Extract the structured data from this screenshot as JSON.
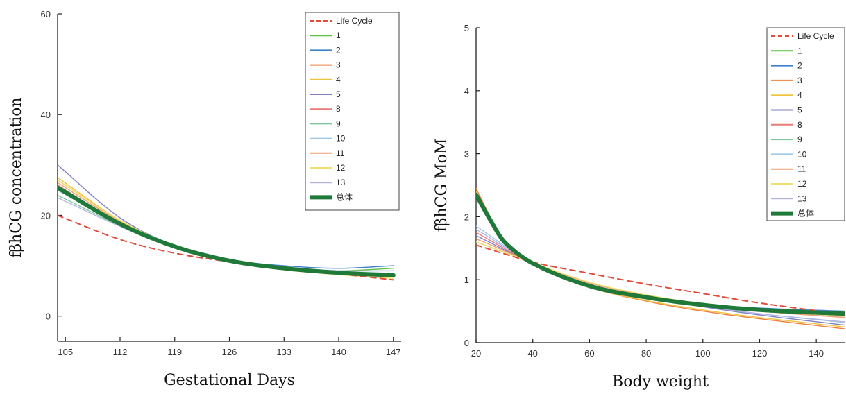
{
  "chart_data": [
    {
      "type": "line",
      "title": "",
      "xlabel": "Gestational Days",
      "ylabel": "fβhCG concentration",
      "xlim": [
        104,
        148
      ],
      "ylim": [
        -5,
        60
      ],
      "xticks": [
        105,
        112,
        119,
        126,
        133,
        140,
        147
      ],
      "yticks": [
        0,
        20,
        40,
        60
      ],
      "legend_position": "top-right",
      "series": [
        {
          "name": "Life Cycle",
          "color": "#e04b3a",
          "dash": true,
          "x": [
            104,
            112,
            119,
            126,
            133,
            140,
            147
          ],
          "y": [
            20,
            15.2,
            12.5,
            10.8,
            9.6,
            8.4,
            7.2
          ]
        },
        {
          "name": "1",
          "color": "#5bbf3f",
          "x": [
            104,
            112,
            119,
            126,
            133,
            140,
            147
          ],
          "y": [
            25,
            18.5,
            14,
            11,
            9.5,
            9,
            9.5
          ]
        },
        {
          "name": "2",
          "color": "#3f7fd0",
          "x": [
            104,
            112,
            119,
            126,
            133,
            140,
            147
          ],
          "y": [
            26,
            18.5,
            14,
            11.2,
            10,
            9.5,
            10
          ]
        },
        {
          "name": "3",
          "color": "#f07f3f",
          "x": [
            104,
            112,
            119,
            126,
            133,
            140,
            147
          ],
          "y": [
            27,
            19,
            14,
            11,
            9.5,
            8.5,
            8
          ]
        },
        {
          "name": "4",
          "color": "#f0c43f",
          "x": [
            104,
            112,
            119,
            126,
            133,
            140,
            147
          ],
          "y": [
            27.5,
            19,
            14,
            11,
            9.2,
            8.3,
            7.8
          ]
        },
        {
          "name": "5",
          "color": "#7f7fc8",
          "x": [
            104,
            112,
            119,
            126,
            133,
            140,
            147
          ],
          "y": [
            30,
            19.5,
            14,
            11,
            9.5,
            8.5,
            8
          ]
        },
        {
          "name": "8",
          "color": "#e87a7a",
          "x": [
            104,
            112,
            119,
            126,
            133,
            140,
            147
          ],
          "y": [
            26,
            18.5,
            13.8,
            11,
            9.4,
            8.5,
            8
          ]
        },
        {
          "name": "9",
          "color": "#7fc89f",
          "x": [
            104,
            112,
            119,
            126,
            133,
            140,
            147
          ],
          "y": [
            24,
            18,
            13.8,
            11,
            9.5,
            8.8,
            8.5
          ]
        },
        {
          "name": "10",
          "color": "#9fc8e8",
          "x": [
            104,
            112,
            119,
            126,
            133,
            140,
            147
          ],
          "y": [
            25,
            18.3,
            13.8,
            11,
            9.6,
            9,
            9
          ]
        },
        {
          "name": "11",
          "color": "#f0a070",
          "x": [
            104,
            112,
            119,
            126,
            133,
            140,
            147
          ],
          "y": [
            26.5,
            18.8,
            14,
            11,
            9.4,
            8.4,
            7.8
          ]
        },
        {
          "name": "12",
          "color": "#f0e070",
          "x": [
            104,
            112,
            119,
            126,
            133,
            140,
            147
          ],
          "y": [
            27,
            19,
            14,
            11,
            9.3,
            8.2,
            7.5
          ]
        },
        {
          "name": "13",
          "color": "#b4b4e0",
          "x": [
            104,
            112,
            119,
            126,
            133,
            140,
            147
          ],
          "y": [
            23.5,
            17.8,
            13.6,
            11,
            9.6,
            9,
            9
          ]
        },
        {
          "name": "总体",
          "color": "#1f7a3a",
          "bold": true,
          "x": [
            104,
            112,
            119,
            126,
            133,
            140,
            147
          ],
          "y": [
            25.5,
            18.3,
            13.8,
            11,
            9.5,
            8.6,
            8.1
          ]
        }
      ]
    },
    {
      "type": "line",
      "title": "",
      "xlabel": "Body weight",
      "ylabel": "fβhCG MoM",
      "xlim": [
        20,
        150
      ],
      "ylim": [
        0,
        5
      ],
      "xticks": [
        20,
        40,
        60,
        80,
        100,
        120,
        140
      ],
      "yticks": [
        0,
        1,
        2,
        3,
        4,
        5
      ],
      "legend_position": "top-right",
      "series": [
        {
          "name": "Life Cycle",
          "color": "#e04b3a",
          "dash": true,
          "x": [
            20,
            40,
            60,
            80,
            100,
            120,
            150
          ],
          "y": [
            1.55,
            1.28,
            1.1,
            0.93,
            0.78,
            0.63,
            0.45
          ]
        },
        {
          "name": "1",
          "color": "#5bbf3f",
          "x": [
            20,
            25,
            30,
            40,
            60,
            80,
            100,
            120,
            150
          ],
          "y": [
            2.35,
            1.95,
            1.6,
            1.26,
            0.9,
            0.72,
            0.6,
            0.52,
            0.45
          ]
        },
        {
          "name": "2",
          "color": "#3f7fd0",
          "x": [
            20,
            25,
            30,
            40,
            60,
            80,
            100,
            120,
            150
          ],
          "y": [
            2.3,
            1.9,
            1.58,
            1.26,
            0.9,
            0.72,
            0.61,
            0.55,
            0.5
          ]
        },
        {
          "name": "3",
          "color": "#f07f3f",
          "x": [
            20,
            25,
            30,
            40,
            60,
            80,
            100,
            120,
            150
          ],
          "y": [
            2.45,
            2.0,
            1.62,
            1.26,
            0.88,
            0.66,
            0.5,
            0.38,
            0.22
          ]
        },
        {
          "name": "4",
          "color": "#f0c43f",
          "x": [
            20,
            25,
            30,
            40,
            60,
            80,
            100,
            120,
            150
          ],
          "y": [
            2.4,
            1.98,
            1.6,
            1.26,
            0.88,
            0.67,
            0.52,
            0.4,
            0.25
          ]
        },
        {
          "name": "5",
          "color": "#7f7fc8",
          "x": [
            20,
            40,
            60,
            80,
            100,
            120,
            150
          ],
          "y": [
            1.7,
            1.26,
            0.92,
            0.72,
            0.57,
            0.44,
            0.28
          ]
        },
        {
          "name": "8",
          "color": "#e87a7a",
          "x": [
            20,
            40,
            60,
            80,
            100,
            120,
            150
          ],
          "y": [
            1.75,
            1.26,
            0.93,
            0.73,
            0.6,
            0.5,
            0.4
          ]
        },
        {
          "name": "9",
          "color": "#7fc89f",
          "x": [
            20,
            40,
            60,
            80,
            100,
            120,
            150
          ],
          "y": [
            1.6,
            1.27,
            0.95,
            0.75,
            0.62,
            0.54,
            0.46
          ]
        },
        {
          "name": "10",
          "color": "#9fc8e8",
          "x": [
            20,
            40,
            60,
            80,
            100,
            120,
            150
          ],
          "y": [
            1.85,
            1.26,
            0.92,
            0.72,
            0.58,
            0.46,
            0.32
          ]
        },
        {
          "name": "11",
          "color": "#f0a070",
          "x": [
            20,
            40,
            60,
            80,
            100,
            120,
            150
          ],
          "y": [
            1.65,
            1.27,
            0.95,
            0.75,
            0.6,
            0.5,
            0.4
          ]
        },
        {
          "name": "12",
          "color": "#f0e070",
          "x": [
            20,
            40,
            60,
            80,
            100,
            120,
            150
          ],
          "y": [
            1.6,
            1.27,
            0.96,
            0.76,
            0.62,
            0.52,
            0.42
          ]
        },
        {
          "name": "13",
          "color": "#b4b4e0",
          "x": [
            20,
            40,
            60,
            80,
            100,
            120,
            150
          ],
          "y": [
            1.8,
            1.26,
            0.92,
            0.72,
            0.58,
            0.46,
            0.33
          ]
        },
        {
          "name": "总体",
          "color": "#1f7a3a",
          "bold": true,
          "x": [
            20,
            25,
            30,
            40,
            60,
            80,
            100,
            120,
            150
          ],
          "y": [
            2.35,
            1.95,
            1.6,
            1.26,
            0.9,
            0.72,
            0.6,
            0.52,
            0.46
          ]
        }
      ]
    }
  ]
}
